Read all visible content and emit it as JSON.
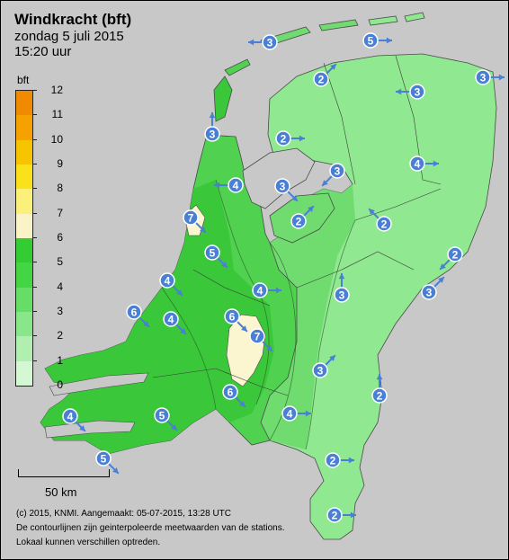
{
  "title": "Windkracht (bft)",
  "date": "zondag 5 juli 2015",
  "time": "15:20 uur",
  "legend": {
    "unit": "bft",
    "levels": [
      {
        "value": "12",
        "color": "#f08a00"
      },
      {
        "value": "11",
        "color": "#f5a100"
      },
      {
        "value": "10",
        "color": "#f7c400"
      },
      {
        "value": "9",
        "color": "#fae11a"
      },
      {
        "value": "8",
        "color": "#faf07a"
      },
      {
        "value": "7",
        "color": "#fbf3c8"
      },
      {
        "value": "6",
        "color": "#33cc33"
      },
      {
        "value": "5",
        "color": "#44d544"
      },
      {
        "value": "4",
        "color": "#66dd66"
      },
      {
        "value": "3",
        "color": "#8ae68a"
      },
      {
        "value": "2",
        "color": "#b0efb0"
      },
      {
        "value": "1",
        "color": "#d4f7d4"
      }
    ],
    "bottom_label": "0"
  },
  "scale": {
    "label": "50 km"
  },
  "footer": {
    "line1": "(c) 2015, KNMI. Aangemaakt: 05-07-2015, 13:28 UTC",
    "line2": "De contourlijnen zijn geinterpoleerde meetwaarden van de stations.",
    "line3": "Lokaal kunnen verschillen optreden."
  },
  "colors": {
    "sea": "#c8c8c8",
    "land_bft2": "#90e890",
    "land_bft3": "#70dc70",
    "land_bft4": "#50d250",
    "land_bft5": "#3ac83a",
    "land_bft6": "#fbf5d0",
    "station_fill": "#4a7fd6",
    "arrow": "#4a7fd6"
  },
  "stations": [
    {
      "label": "3",
      "dir": "W"
    },
    {
      "label": "5",
      "dir": "E"
    },
    {
      "label": "2",
      "dir": "NE"
    },
    {
      "label": "3",
      "dir": "SW"
    },
    {
      "label": "3",
      "dir": "W"
    },
    {
      "label": "3",
      "dir": "E"
    },
    {
      "label": "2",
      "dir": "E"
    },
    {
      "label": "4",
      "dir": "E"
    },
    {
      "label": "3",
      "dir": "N"
    },
    {
      "label": "4",
      "dir": "W"
    },
    {
      "label": "3",
      "dir": "SE"
    },
    {
      "label": "7",
      "dir": "SE"
    },
    {
      "label": "2",
      "dir": "NE"
    },
    {
      "label": "2",
      "dir": "NW"
    },
    {
      "label": "2",
      "dir": "SW"
    },
    {
      "label": "5",
      "dir": "SE"
    },
    {
      "label": "4",
      "dir": "E"
    },
    {
      "label": "3",
      "dir": "N"
    },
    {
      "label": "4",
      "dir": "SE"
    },
    {
      "label": "3",
      "dir": "NE"
    },
    {
      "label": "6",
      "dir": "SE"
    },
    {
      "label": "4",
      "dir": "SE"
    },
    {
      "label": "6",
      "dir": "SE"
    },
    {
      "label": "7",
      "dir": "SE"
    },
    {
      "label": "3",
      "dir": "NE"
    },
    {
      "label": "6",
      "dir": "SE"
    },
    {
      "label": "2",
      "dir": "N"
    },
    {
      "label": "4",
      "dir": "E"
    },
    {
      "label": "4",
      "dir": "SE"
    },
    {
      "label": "5",
      "dir": "SE"
    },
    {
      "label": "2",
      "dir": "E"
    },
    {
      "label": "5",
      "dir": "SE"
    },
    {
      "label": "2",
      "dir": "E"
    }
  ]
}
